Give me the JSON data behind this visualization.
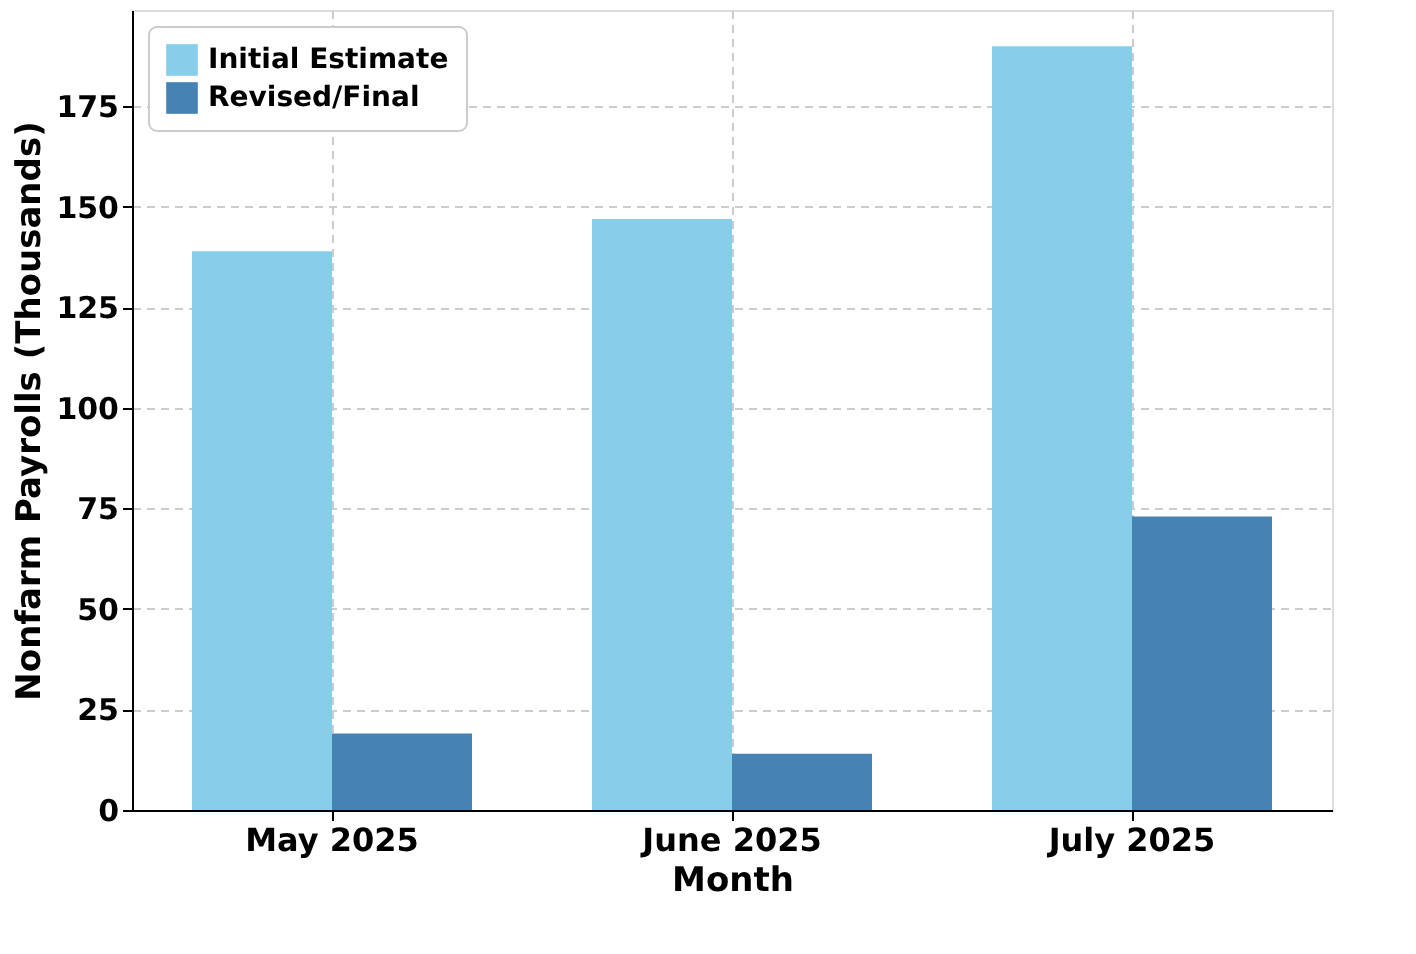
{
  "chart_data": {
    "type": "bar",
    "xlabel": "Month",
    "ylabel": "Nonfarm Payrolls (Thousands)",
    "categories": [
      "May 2025",
      "June 2025",
      "July 2025"
    ],
    "series": [
      {
        "name": "Initial Estimate",
        "color": "#87ceeb",
        "values": [
          139,
          147,
          190
        ]
      },
      {
        "name": "Revised/Final",
        "color": "#4682b4",
        "values": [
          19,
          14,
          73
        ]
      }
    ],
    "ylim": [
      0,
      199
    ],
    "yticks": [
      0,
      25,
      50,
      75,
      100,
      125,
      150,
      175
    ],
    "grid": true,
    "legend": "top left"
  }
}
